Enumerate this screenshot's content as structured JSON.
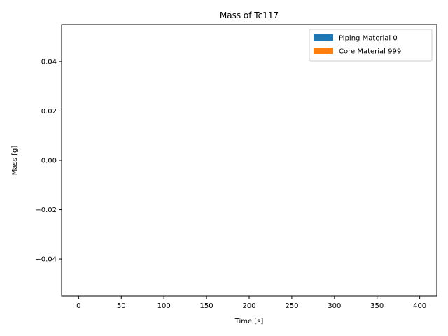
{
  "chart_data": {
    "type": "area",
    "title": "Mass of Tc117",
    "xlabel": "Time [s]",
    "ylabel": "Mass [g]",
    "xlim": [
      -20,
      420
    ],
    "ylim": [
      -0.055,
      0.055
    ],
    "xticks": [
      0,
      50,
      100,
      150,
      200,
      250,
      300,
      350,
      400
    ],
    "yticks": [
      -0.04,
      -0.02,
      0.0,
      0.02,
      0.04
    ],
    "ytick_labels": [
      "−0.04",
      "−0.02",
      "0.00",
      "0.02",
      "0.04"
    ],
    "grid": false,
    "legend_position": "top-right",
    "series": [
      {
        "name": "Piping Material 0",
        "color": "#1f77b4",
        "x": [
          0,
          400
        ],
        "values": [
          0,
          0
        ]
      },
      {
        "name": "Core Material 999",
        "color": "#ff7f0e",
        "x": [
          0,
          400
        ],
        "values": [
          0,
          0
        ]
      }
    ]
  }
}
